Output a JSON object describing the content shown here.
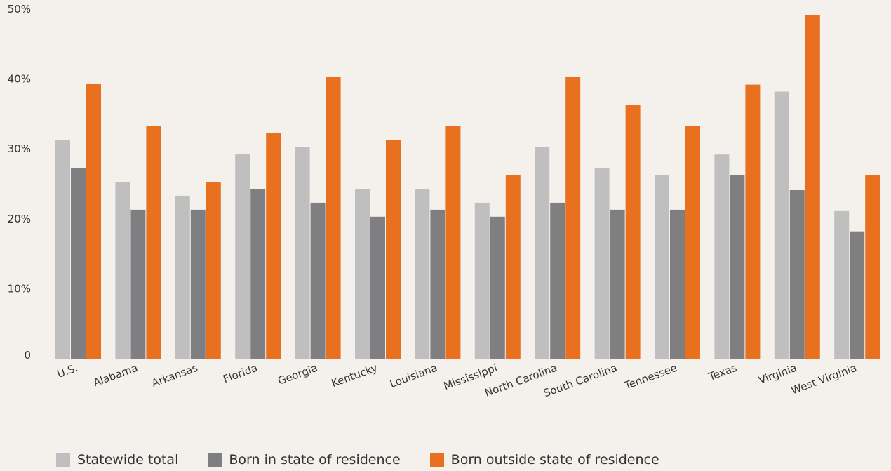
{
  "chart_data": {
    "type": "bar",
    "title": "",
    "xlabel": "",
    "ylabel": "",
    "ylim": [
      0,
      50
    ],
    "yticks": [
      {
        "value": 0,
        "label": "0"
      },
      {
        "value": 10,
        "label": "10%"
      },
      {
        "value": 20,
        "label": "20%"
      },
      {
        "value": 30,
        "label": "30%"
      },
      {
        "value": 40,
        "label": "40%"
      },
      {
        "value": 50,
        "label": "50%"
      }
    ],
    "grid": false,
    "legend_position": "bottom-left",
    "categories": [
      "U.S.",
      "Alabama",
      "Arkansas",
      "Florida",
      "Georgia",
      "Kentucky",
      "Louisiana",
      "Mississippi",
      "North Carolina",
      "South Carolina",
      "Tennessee",
      "Texas",
      "Virginia",
      "West Virginia"
    ],
    "series": [
      {
        "name": "Statewide total",
        "color": "#bfbfbf",
        "values": [
          31.3,
          25.3,
          23.3,
          29.3,
          30.3,
          24.3,
          24.3,
          22.3,
          30.3,
          27.3,
          26.2,
          29.2,
          38.2,
          21.2
        ]
      },
      {
        "name": "Born in state of residence",
        "color": "#7f7f82",
        "values": [
          27.3,
          21.3,
          21.3,
          24.3,
          22.3,
          20.3,
          21.3,
          20.3,
          22.3,
          21.3,
          21.3,
          26.2,
          24.2,
          18.2
        ]
      },
      {
        "name": "Born outside state of residence",
        "color": "#e8701f",
        "values": [
          39.3,
          33.3,
          25.3,
          32.3,
          40.3,
          31.3,
          33.3,
          26.3,
          40.3,
          36.3,
          33.3,
          39.2,
          49.2,
          26.2
        ]
      }
    ]
  }
}
